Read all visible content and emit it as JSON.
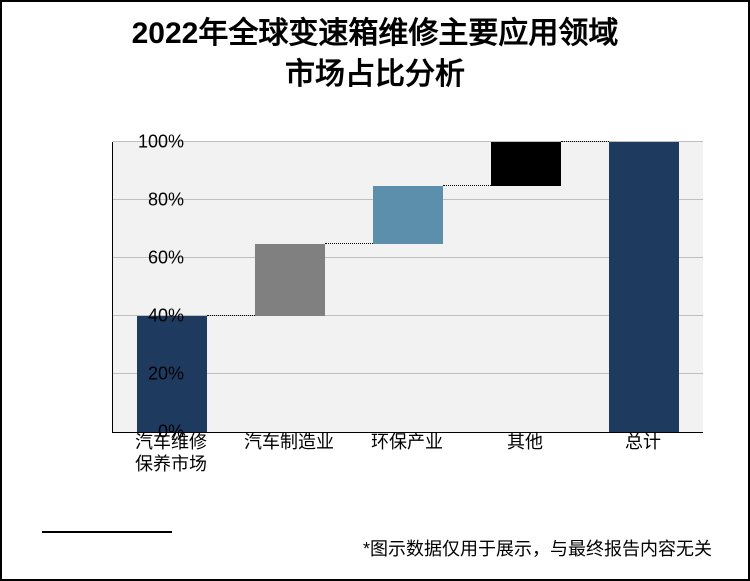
{
  "title_line1": "2022年全球变速箱维修主要应用领域",
  "title_line2": "市场占比分析",
  "title_fontsize": 30,
  "title_fontweight": 700,
  "title_color": "#000000",
  "footnote": "*图示数据仅用于展示，与最终报告内容无关",
  "footnote_fontsize": 18,
  "footnote_color": "#000000",
  "chart": {
    "type": "waterfall",
    "background_color": "#f2f2f2",
    "grid_color": "#bfbfbf",
    "axis_color": "#000000",
    "ylim_min": 0,
    "ylim_max": 100,
    "ytick_step": 20,
    "yticks": [
      "0%",
      "20%",
      "40%",
      "60%",
      "80%",
      "100%"
    ],
    "tick_fontsize": 18,
    "xlabel_fontsize": 18,
    "bar_width_pct": 60,
    "connector_style": "dotted",
    "connector_color": "#000000",
    "categories": [
      "汽车维修\n保养市场",
      "汽车制造业",
      "环保产业",
      "其他",
      "总计"
    ],
    "bars": [
      {
        "start": 0,
        "end": 40,
        "color": "#1f3a5f"
      },
      {
        "start": 40,
        "end": 65,
        "color": "#808080"
      },
      {
        "start": 65,
        "end": 85,
        "color": "#5b8fab"
      },
      {
        "start": 85,
        "end": 100,
        "color": "#000000"
      },
      {
        "start": 0,
        "end": 100,
        "color": "#1f3a5f"
      }
    ]
  }
}
